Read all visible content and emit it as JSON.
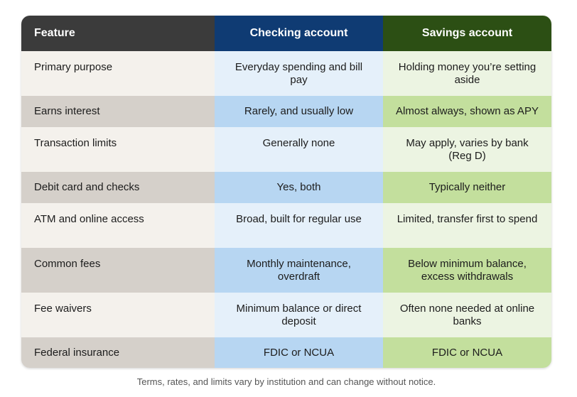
{
  "table": {
    "headers": [
      "Feature",
      "Checking account",
      "Savings account"
    ],
    "rows": [
      {
        "feature": "Primary purpose",
        "checking": "Everyday spending and bill pay",
        "savings": "Holding money you’re setting aside"
      },
      {
        "feature": "Earns interest",
        "checking": "Rarely, and usually low",
        "savings": "Almost always, shown as APY"
      },
      {
        "feature": "Transaction limits",
        "checking": "Generally none",
        "savings": "May apply, varies by bank (Reg D)"
      },
      {
        "feature": "Debit card and checks",
        "checking": "Yes, both",
        "savings": "Typically neither"
      },
      {
        "feature": "ATM and online access",
        "checking": "Broad, built for regular use",
        "savings": "Limited, transfer first to spend"
      },
      {
        "feature": "Common fees",
        "checking": "Monthly maintenance, overdraft",
        "savings": "Below minimum balance, excess withdrawals"
      },
      {
        "feature": "Fee waivers",
        "checking": "Minimum balance or direct deposit",
        "savings": "Often none needed at online banks"
      },
      {
        "feature": "Federal insurance",
        "checking": "FDIC or NCUA",
        "savings": "FDIC or NCUA"
      }
    ]
  },
  "colors": {
    "header_feature": "#3b3b3b",
    "header_checking": "#0f3b73",
    "header_savings": "#2c4f14"
  },
  "footnote": "Terms, rates, and limits vary by institution and can change without notice."
}
